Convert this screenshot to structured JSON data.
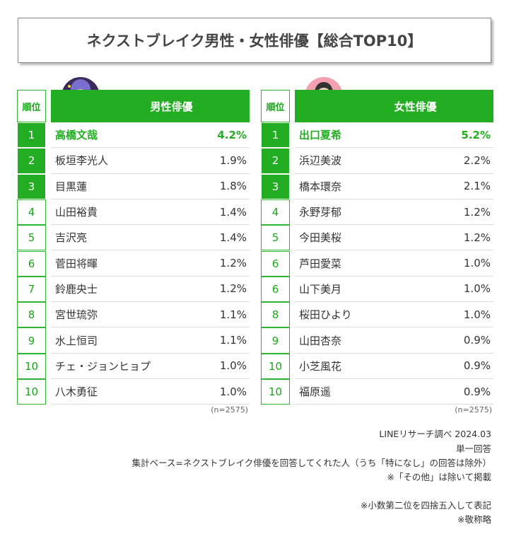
{
  "title": "ネクストブレイク男性・女性俳優【総合TOP10】",
  "tables": [
    {
      "rank_header": "順位",
      "header": "男性俳優",
      "sample": "(n=2575)",
      "rows": [
        [
          "1",
          "高橋文哉",
          "4.2%"
        ],
        [
          "2",
          "板垣李光人",
          "1.9%"
        ],
        [
          "3",
          "目黒蓮",
          "1.8%"
        ],
        [
          "4",
          "山田裕貴",
          "1.4%"
        ],
        [
          "5",
          "吉沢亮",
          "1.4%"
        ],
        [
          "6",
          "菅田将暉",
          "1.2%"
        ],
        [
          "7",
          "鈴鹿央士",
          "1.2%"
        ],
        [
          "8",
          "宮世琉弥",
          "1.1%"
        ],
        [
          "9",
          "水上恒司",
          "1.1%"
        ],
        [
          "10",
          "チェ・ジョンヒョプ",
          "1.0%"
        ],
        [
          "10",
          "八木勇征",
          "1.0%"
        ]
      ]
    },
    {
      "rank_header": "順位",
      "header": "女性俳優",
      "sample": "(n=2575)",
      "rows": [
        [
          "1",
          "出口夏希",
          "5.2%"
        ],
        [
          "2",
          "浜辺美波",
          "2.2%"
        ],
        [
          "3",
          "橋本環奈",
          "2.1%"
        ],
        [
          "4",
          "永野芽郁",
          "1.2%"
        ],
        [
          "5",
          "今田美桜",
          "1.2%"
        ],
        [
          "6",
          "芦田愛菜",
          "1.0%"
        ],
        [
          "6",
          "山下美月",
          "1.0%"
        ],
        [
          "8",
          "桜田ひより",
          "1.0%"
        ],
        [
          "9",
          "山田杏奈",
          "0.9%"
        ],
        [
          "10",
          "小芝風花",
          "0.9%"
        ],
        [
          "10",
          "福原遥",
          "0.9%"
        ]
      ]
    }
  ],
  "notes": [
    "LINEリサーチ調べ 2024.03",
    "単一回答",
    "集計ベース=ネクストブレイク俳優を回答してくれた人（うち「特になし」の回答は除外）",
    "※「その他」は除いて掲載"
  ],
  "footnotes": [
    "※小数第二位を四捨五入して表記",
    "※敬称略"
  ]
}
